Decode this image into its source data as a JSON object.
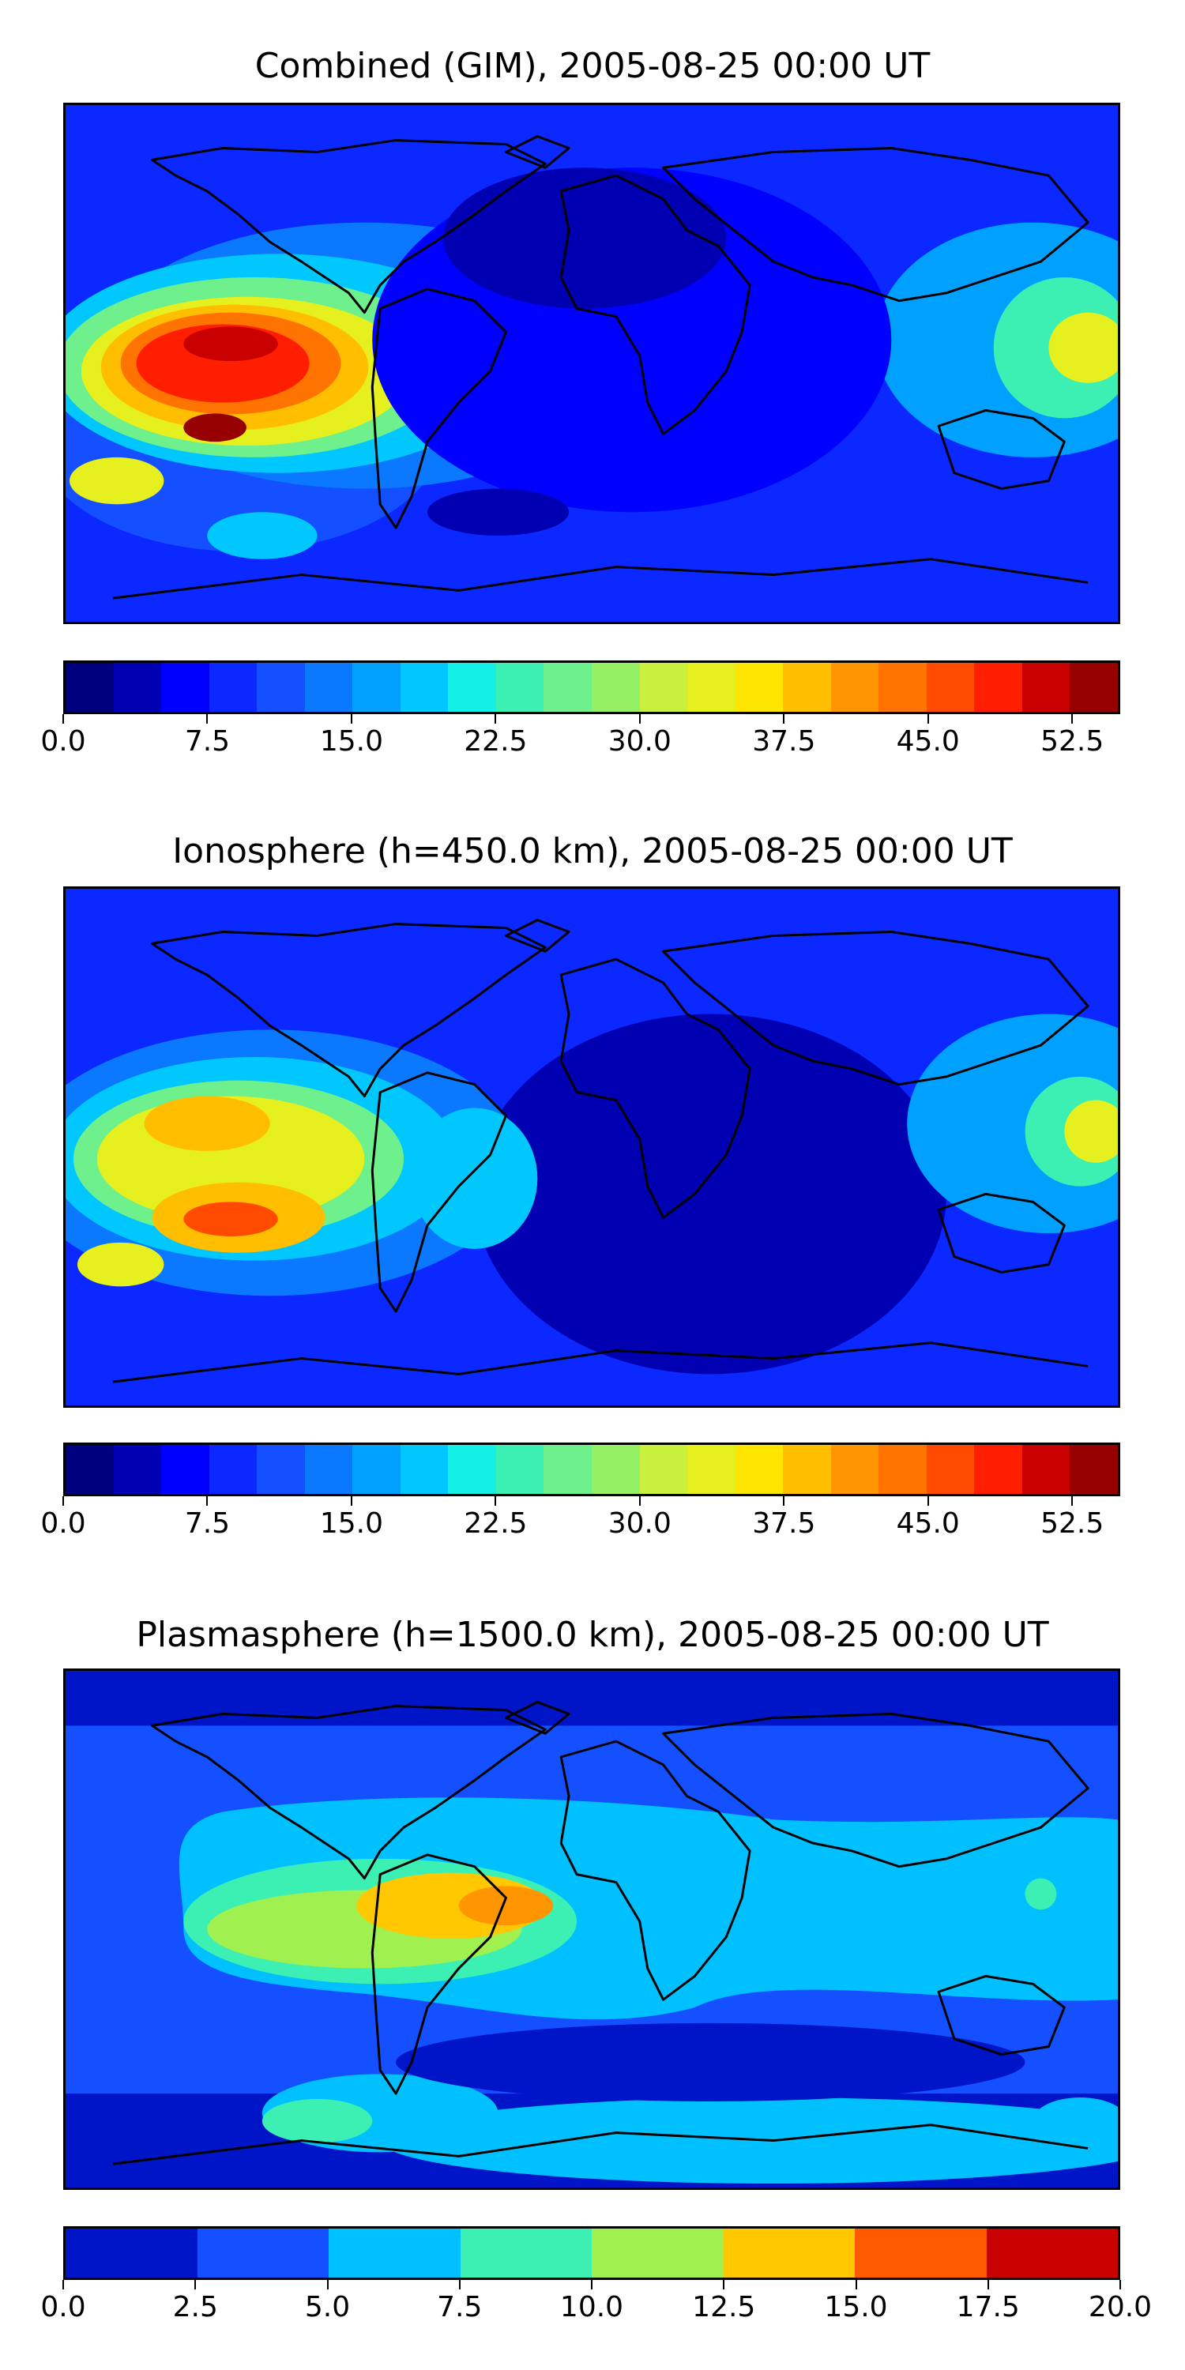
{
  "panels": [
    {
      "title": "Combined (GIM), 2005-08-25 00:00 UT",
      "colorbar": {
        "min": 0,
        "max": 55,
        "colors": [
          "#00007f",
          "#0000b2",
          "#0000ff",
          "#0a28ff",
          "#1450ff",
          "#0a78ff",
          "#00a0ff",
          "#00c8ff",
          "#14f0e6",
          "#3cf0b4",
          "#6ef08c",
          "#96f064",
          "#c8f03c",
          "#e6f01e",
          "#ffe600",
          "#ffbe00",
          "#ff9600",
          "#ff7300",
          "#ff4b00",
          "#ff1e00",
          "#c80000",
          "#960000"
        ],
        "ticks": [
          "0.0",
          "7.5",
          "15.0",
          "22.5",
          "30.0",
          "37.5",
          "45.0",
          "52.5"
        ],
        "tick_values": [
          0,
          7.5,
          15,
          22.5,
          30,
          37.5,
          45,
          52.5
        ]
      }
    },
    {
      "title": "Ionosphere  (h=450.0 km), 2005-08-25 00:00 UT",
      "colorbar": {
        "min": 0,
        "max": 55,
        "colors": [
          "#00007f",
          "#0000b2",
          "#0000ff",
          "#0a28ff",
          "#1450ff",
          "#0a78ff",
          "#00a0ff",
          "#00c8ff",
          "#14f0e6",
          "#3cf0b4",
          "#6ef08c",
          "#96f064",
          "#c8f03c",
          "#e6f01e",
          "#ffe600",
          "#ffbe00",
          "#ff9600",
          "#ff7300",
          "#ff4b00",
          "#ff1e00",
          "#c80000",
          "#960000"
        ],
        "ticks": [
          "0.0",
          "7.5",
          "15.0",
          "22.5",
          "30.0",
          "37.5",
          "45.0",
          "52.5"
        ],
        "tick_values": [
          0,
          7.5,
          15,
          22.5,
          30,
          37.5,
          45,
          52.5
        ]
      }
    },
    {
      "title": "Plasmasphere (h=1500.0 km), 2005-08-25 00:00 UT",
      "colorbar": {
        "min": 0,
        "max": 20,
        "colors": [
          "#0014c8",
          "#1450ff",
          "#00c0ff",
          "#3cf0b4",
          "#a0f050",
          "#ffc800",
          "#ff5a00",
          "#c80000"
        ],
        "ticks": [
          "0.0",
          "2.5",
          "5.0",
          "7.5",
          "10.0",
          "12.5",
          "15.0",
          "17.5",
          "20.0"
        ],
        "tick_values": [
          0,
          2.5,
          5,
          7.5,
          10,
          12.5,
          15,
          17.5,
          20
        ]
      }
    }
  ]
}
